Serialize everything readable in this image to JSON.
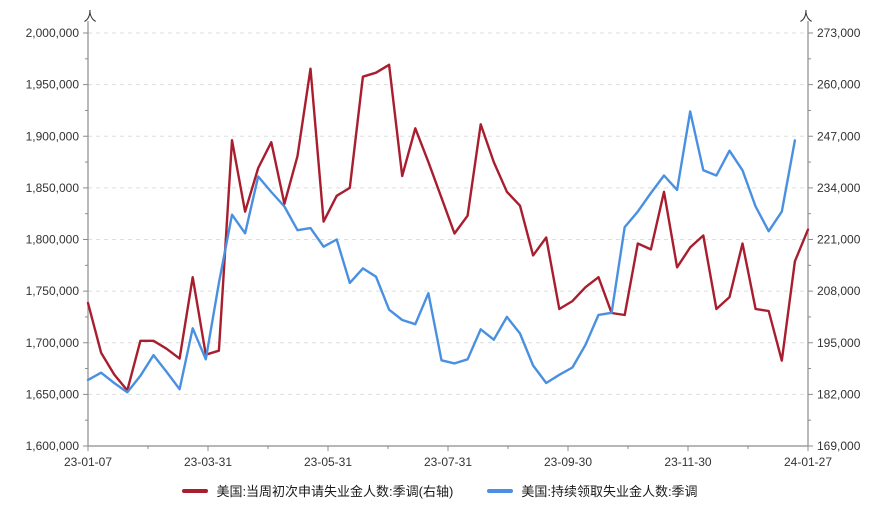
{
  "chart_data": {
    "type": "line",
    "unit_label_left": "人",
    "unit_label_right": "人",
    "x_tick_labels": [
      "23-01-07",
      "23-03-31",
      "23-05-31",
      "23-07-31",
      "23-09-30",
      "23-11-30",
      "24-01-27"
    ],
    "left_axis": {
      "min": 1600000,
      "max": 2000000,
      "step": 50000,
      "minor_step": 25000,
      "unit": "人"
    },
    "right_axis": {
      "min": 169000,
      "max": 273000,
      "step": 13000,
      "minor_step": 6500,
      "unit": "人"
    },
    "grid": {
      "horizontal_dashed": true,
      "color": "#dddddd"
    },
    "axis_color": "#8c8c8c",
    "tick_label_color": "#333333",
    "legend_position": "bottom",
    "series": [
      {
        "name": "美国:当周初次申请失业金人数:季调(右轴)",
        "axis": "right",
        "color": "#a81e2e",
        "values": [
          205000,
          192500,
          187000,
          183000,
          195500,
          195500,
          193500,
          191000,
          211500,
          192000,
          193000,
          246000,
          228000,
          239000,
          245500,
          230000,
          242000,
          264000,
          225500,
          232000,
          234000,
          262000,
          263000,
          265000,
          237000,
          249000,
          240500,
          231500,
          222500,
          227000,
          250000,
          240500,
          233000,
          229500,
          217000,
          221500,
          203500,
          205500,
          209000,
          211500,
          202500,
          202000,
          220000,
          218500,
          233000,
          214000,
          219000,
          222000,
          203500,
          206500,
          220000,
          203500,
          203000,
          190500,
          215500,
          223500
        ]
      },
      {
        "name": "美国:持续领取失业金人数:季调",
        "axis": "left",
        "color": "#4a90e2",
        "values": [
          1664000,
          1671000,
          1661000,
          1652000,
          1668000,
          1688000,
          1672000,
          1655000,
          1714000,
          1684000,
          1758000,
          1824000,
          1806000,
          1861000,
          1846000,
          1832000,
          1809000,
          1811000,
          1793000,
          1800000,
          1758000,
          1772000,
          1764000,
          1732000,
          1722000,
          1718000,
          1748000,
          1683000,
          1680000,
          1684000,
          1713000,
          1703000,
          1725000,
          1709000,
          1678000,
          1661000,
          1669000,
          1676000,
          1698000,
          1727000,
          1729000,
          1812000,
          1827000,
          1845000,
          1862000,
          1848000,
          1924000,
          1867000,
          1862000,
          1886000,
          1867000,
          1832000,
          1808000,
          1827000,
          1896000
        ]
      }
    ]
  }
}
